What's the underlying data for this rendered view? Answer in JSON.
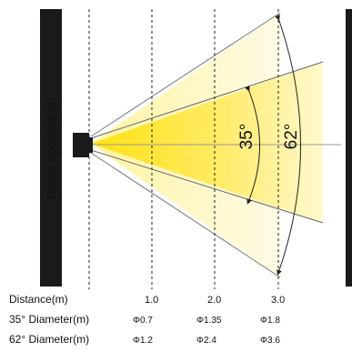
{
  "side_label": "Beam opening(m)",
  "angles": {
    "inner": "35°",
    "outer": "62°"
  },
  "rows": [
    {
      "label": "Distance(m)",
      "values": [
        "1.0",
        "2.0",
        "3.0"
      ]
    },
    {
      "label": "35° Diameter(m)",
      "values": [
        "Φ0.7",
        "Φ1.35",
        "Φ1.8"
      ]
    },
    {
      "label": "62° Diameter(m)",
      "values": [
        "Φ1.2",
        "Φ2.4",
        "Φ3.6"
      ]
    }
  ],
  "colors": {
    "beam_core": "#ffd800",
    "beam_edge": "#fff7b0",
    "frame": "#1a1a1a",
    "line": "#333333"
  }
}
